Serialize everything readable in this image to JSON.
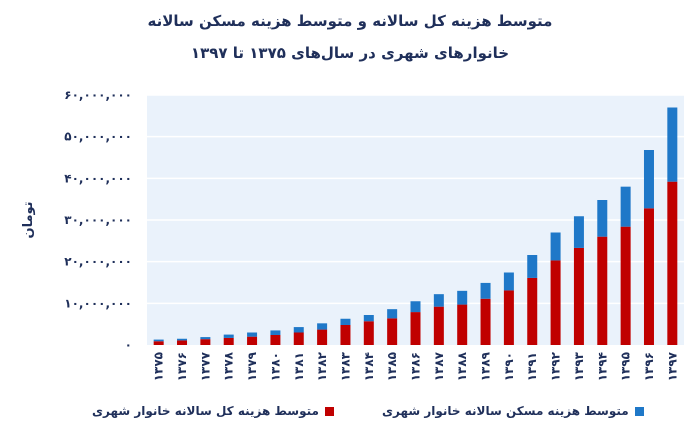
{
  "chart_data": {
    "type": "bar",
    "stacked": true,
    "title": "متوسط هزینه کل سالانه و متوسط هزینه مسکن سالانه",
    "subtitle": "خانوارهای شهری در سال‌های ۱۳۷۵ تا ۱۳۹۷",
    "ylabel": "تومان",
    "xlabel": "",
    "ylim": [
      0,
      60000000
    ],
    "yticks": [
      0,
      10000000,
      20000000,
      30000000,
      40000000,
      50000000,
      60000000
    ],
    "ytick_labels": [
      "۰",
      "۱۰,۰۰۰,۰۰۰",
      "۲۰,۰۰۰,۰۰۰",
      "۳۰,۰۰۰,۰۰۰",
      "۴۰,۰۰۰,۰۰۰",
      "۵۰,۰۰۰,۰۰۰",
      "۶۰,۰۰۰,۰۰۰"
    ],
    "grid": true,
    "legend_position": "bottom",
    "categories": [
      "۱۳۷۵",
      "۱۳۷۶",
      "۱۳۷۷",
      "۱۳۷۸",
      "۱۳۷۹",
      "۱۳۸۰",
      "۱۳۸۱",
      "۱۳۸۲",
      "۱۳۸۳",
      "۱۳۸۴",
      "۱۳۸۵",
      "۱۳۸۶",
      "۱۳۸۷",
      "۱۳۸۸",
      "۱۳۸۹",
      "۱۳۹۰",
      "۱۳۹۱",
      "۱۳۹۲",
      "۱۳۹۳",
      "۱۳۹۴",
      "۱۳۹۵",
      "۱۳۹۶",
      "۱۳۹۷"
    ],
    "series": [
      {
        "name": "متوسط هزینه کل سالانه خانوار شهری",
        "color": "#c00000",
        "values": [
          900000,
          1100000,
          1400000,
          1700000,
          2000000,
          2400000,
          3000000,
          3700000,
          4800000,
          5700000,
          6400000,
          7900000,
          9200000,
          9700000,
          11100000,
          13100000,
          16100000,
          20300000,
          23300000,
          26000000,
          28400000,
          32800000,
          39200000
        ]
      },
      {
        "name": "متوسط هزینه مسکن سالانه خانوار شهری",
        "color": "#1f78c8",
        "values": [
          400000,
          400000,
          500000,
          800000,
          1000000,
          1100000,
          1300000,
          1500000,
          1500000,
          1500000,
          2200000,
          2600000,
          3000000,
          3300000,
          3800000,
          4300000,
          5500000,
          6700000,
          7600000,
          8800000,
          9600000,
          14000000,
          17800000
        ]
      }
    ]
  }
}
